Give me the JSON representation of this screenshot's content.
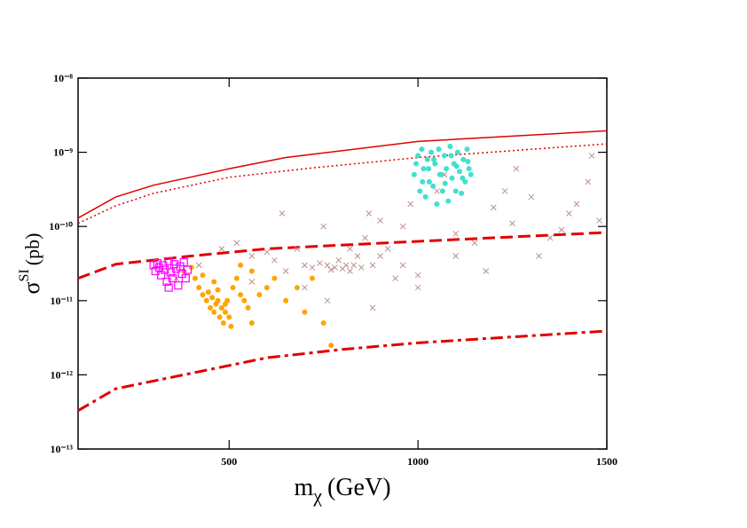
{
  "chart_data": {
    "type": "scatter",
    "xlabel": {
      "main": "m",
      "sub": "χ",
      "unit": "(GeV)"
    },
    "ylabel": {
      "main": "σ",
      "sup": "SI",
      "unit": "(pb)"
    },
    "xlim": [
      100,
      1500
    ],
    "ylim": [
      1e-13,
      1e-08
    ],
    "ylog": true,
    "xticks": [
      500,
      1000,
      1500
    ],
    "yticks": [
      {
        "value": 1e-13,
        "label": "10⁻¹³"
      },
      {
        "value": 1e-12,
        "label": "10⁻¹²"
      },
      {
        "value": 1e-11,
        "label": "10⁻¹¹"
      },
      {
        "value": 1e-10,
        "label": "10⁻¹⁰"
      },
      {
        "value": 1e-09,
        "label": "10⁻⁹"
      },
      {
        "value": 1e-08,
        "label": "10⁻⁸"
      }
    ],
    "series": [
      {
        "color": "#e00000",
        "style": "solid",
        "x": [
          100,
          200,
          300,
          500,
          650,
          1000,
          1500
        ],
        "values": [
          1.3e-10,
          2.5e-10,
          3.6e-10,
          6e-10,
          8.5e-10,
          1.4e-09,
          1.95e-09
        ]
      },
      {
        "color": "#e00000",
        "style": "dotted",
        "x": [
          100,
          200,
          300,
          500,
          700,
          1000,
          1500
        ],
        "values": [
          1.1e-10,
          1.9e-10,
          2.8e-10,
          4.6e-10,
          6e-10,
          8.5e-10,
          1.3e-09
        ]
      },
      {
        "color": "#e00000",
        "style": "dashed",
        "x": [
          100,
          200,
          400,
          600,
          1000,
          1500
        ],
        "values": [
          2e-11,
          3.1e-11,
          4e-11,
          5e-11,
          6.3e-11,
          8.3e-11
        ]
      },
      {
        "color": "#e00000",
        "style": "dashdot",
        "x": [
          100,
          200,
          400,
          600,
          800,
          1000,
          1500
        ],
        "values": [
          3.3e-13,
          6.5e-13,
          1.05e-12,
          1.7e-12,
          2.2e-12,
          2.7e-12,
          3.9e-12
        ]
      },
      {
        "color": "#bc8f8f",
        "marker": "x",
        "x": [
          360,
          420,
          480,
          520,
          560,
          600,
          620,
          650,
          680,
          700,
          720,
          740,
          750,
          760,
          770,
          780,
          790,
          800,
          810,
          820,
          830,
          840,
          850,
          860,
          870,
          880,
          900,
          920,
          940,
          960,
          980,
          1000,
          1050,
          1100,
          1150,
          1200,
          1250,
          1300,
          1350,
          1400,
          1450,
          1480,
          560,
          700,
          900,
          1180,
          1320,
          1420,
          880,
          1000,
          1070,
          1260,
          1380,
          640,
          760,
          820,
          960,
          1230,
          1460,
          1100
        ],
        "values": [
          2e-11,
          3e-11,
          5e-11,
          6e-11,
          4e-11,
          4.5e-11,
          3.5e-11,
          2.5e-11,
          5e-11,
          3e-11,
          2.8e-11,
          3.2e-11,
          1e-10,
          3e-11,
          2.6e-11,
          2.8e-11,
          3.5e-11,
          2.7e-11,
          3e-11,
          2.5e-11,
          3e-11,
          4e-11,
          2.8e-11,
          7e-11,
          1.5e-10,
          3e-11,
          1.2e-10,
          5e-11,
          2e-11,
          1e-10,
          2e-10,
          1.5e-11,
          3e-10,
          8e-11,
          6e-11,
          1.8e-10,
          1.1e-10,
          2.5e-10,
          7e-11,
          1.5e-10,
          4e-10,
          1.2e-10,
          1.8e-11,
          1.5e-11,
          4e-11,
          2.5e-11,
          4e-11,
          2e-10,
          8e-12,
          2.2e-11,
          5e-10,
          6e-10,
          9e-11,
          1.5e-10,
          1e-11,
          5e-11,
          3e-11,
          3e-10,
          9e-10,
          4e-11
        ]
      },
      {
        "color": "#40e0d0",
        "marker": "circle",
        "x": [
          990,
          1000,
          1005,
          1010,
          1015,
          1020,
          1025,
          1030,
          1035,
          1040,
          1045,
          1050,
          1055,
          1060,
          1065,
          1070,
          1075,
          1080,
          1085,
          1090,
          1095,
          1100,
          1105,
          1110,
          1115,
          1120,
          1125,
          1130,
          1135,
          1140,
          995,
          1012,
          1028,
          1042,
          1058,
          1072,
          1088,
          1102,
          1118,
          1132
        ],
        "values": [
          5e-10,
          9e-10,
          3e-10,
          1.1e-09,
          6e-10,
          2.5e-10,
          8e-10,
          4e-10,
          1e-09,
          3.5e-10,
          7e-10,
          2e-10,
          1.1e-09,
          5e-10,
          3e-10,
          9e-10,
          6e-10,
          2.2e-10,
          1.2e-09,
          4.5e-10,
          7e-10,
          3e-10,
          1e-09,
          5.5e-10,
          2.8e-10,
          8e-10,
          4e-10,
          1.1e-09,
          6e-10,
          5e-10,
          7e-10,
          4e-10,
          6e-10,
          8e-10,
          5e-10,
          3.8e-10,
          9e-10,
          6.5e-10,
          4.5e-10,
          7.5e-10
        ]
      },
      {
        "color": "#ffa500",
        "marker": "circle",
        "x": [
          380,
          400,
          410,
          420,
          430,
          440,
          445,
          450,
          455,
          460,
          465,
          470,
          475,
          480,
          485,
          490,
          495,
          500,
          510,
          520,
          530,
          540,
          550,
          560,
          580,
          600,
          620,
          650,
          680,
          700,
          720,
          750,
          770,
          430,
          460,
          470,
          490,
          505,
          530,
          560
        ],
        "values": [
          2.5e-11,
          2.8e-11,
          2e-11,
          1.5e-11,
          1.2e-11,
          1e-11,
          1.3e-11,
          8e-12,
          1.1e-11,
          7e-12,
          9e-12,
          1e-11,
          6e-12,
          8e-12,
          5e-12,
          7e-12,
          1e-11,
          6e-12,
          1.5e-11,
          2e-11,
          1.2e-11,
          1e-11,
          8e-12,
          5e-12,
          1.2e-11,
          1.5e-11,
          2e-11,
          1e-11,
          1.5e-11,
          7e-12,
          2e-11,
          5e-12,
          2.5e-12,
          2.2e-11,
          1.8e-11,
          1.4e-11,
          9e-12,
          4.5e-12,
          3e-11,
          2.5e-11
        ]
      },
      {
        "color": "#ff00ff",
        "marker": "square",
        "x": [
          300,
          305,
          310,
          315,
          320,
          325,
          330,
          335,
          340,
          345,
          350,
          355,
          360,
          365,
          370,
          375,
          380,
          385,
          390,
          340
        ],
        "values": [
          3e-11,
          2.5e-11,
          3.2e-11,
          2.8e-11,
          2.2e-11,
          3e-11,
          2.6e-11,
          1.8e-11,
          3.4e-11,
          2.4e-11,
          2e-11,
          3.1e-11,
          2.7e-11,
          1.6e-11,
          2.9e-11,
          2.3e-11,
          3.3e-11,
          2e-11,
          2.6e-11,
          1.5e-11
        ]
      }
    ]
  }
}
